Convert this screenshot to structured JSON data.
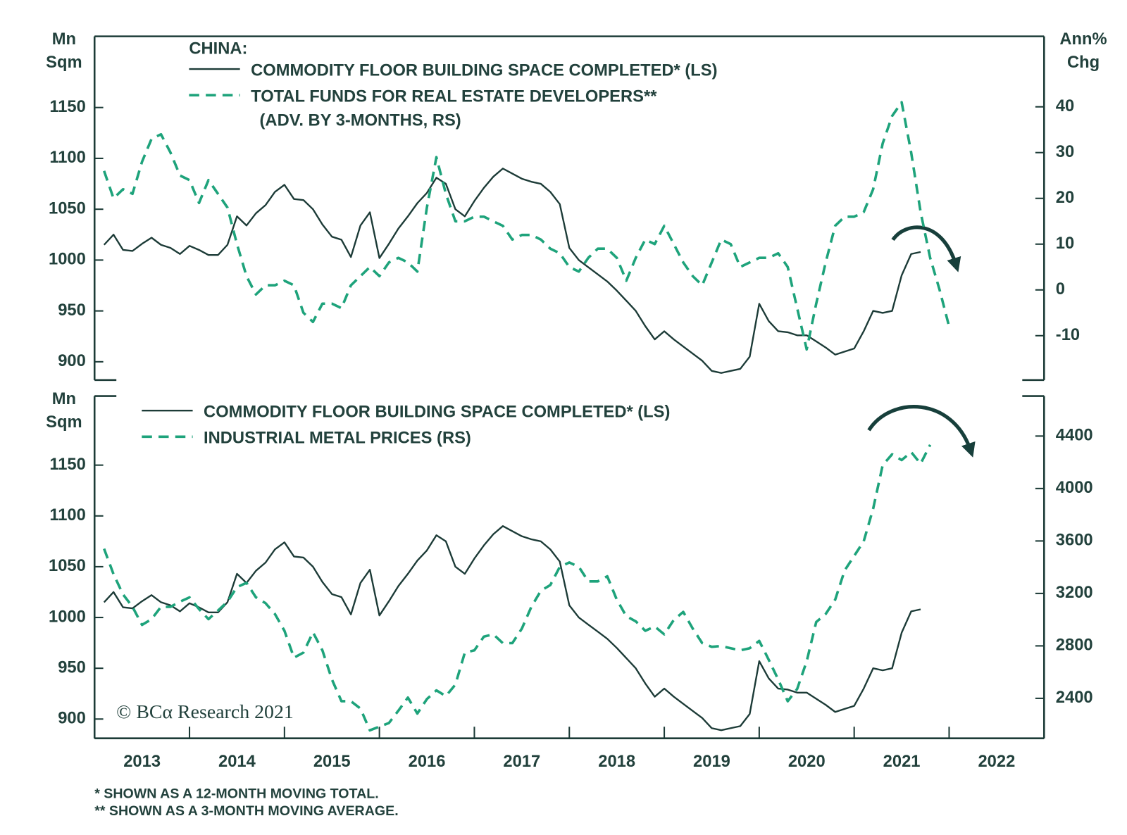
{
  "chart_data": [
    {
      "type": "line",
      "title": "CHINA:",
      "ylabel": [
        "Mn",
        "Sqm"
      ],
      "y2label": [
        "Ann%",
        "Chg"
      ],
      "x": [
        2013.1,
        2013.2,
        2013.3,
        2013.4,
        2013.5,
        2013.6,
        2013.7,
        2013.8,
        2013.9,
        2014.0,
        2014.1,
        2014.2,
        2014.3,
        2014.4,
        2014.5,
        2014.6,
        2014.7,
        2014.8,
        2014.9,
        2015.0,
        2015.1,
        2015.2,
        2015.3,
        2015.4,
        2015.5,
        2015.6,
        2015.7,
        2015.8,
        2015.9,
        2016.0,
        2016.1,
        2016.2,
        2016.3,
        2016.4,
        2016.5,
        2016.6,
        2016.7,
        2016.8,
        2016.9,
        2017.0,
        2017.1,
        2017.2,
        2017.3,
        2017.4,
        2017.5,
        2017.6,
        2017.7,
        2017.8,
        2017.9,
        2018.0,
        2018.1,
        2018.2,
        2018.3,
        2018.4,
        2018.5,
        2018.6,
        2018.7,
        2018.8,
        2018.9,
        2019.0,
        2019.1,
        2019.2,
        2019.3,
        2019.4,
        2019.5,
        2019.6,
        2019.7,
        2019.8,
        2019.9,
        2020.0,
        2020.1,
        2020.2,
        2020.3,
        2020.4,
        2020.5,
        2020.6,
        2020.7,
        2020.8,
        2020.9,
        2021.0,
        2021.1,
        2021.2,
        2021.3,
        2021.4,
        2021.5,
        2021.6,
        2021.7,
        2021.8,
        2021.9,
        2022.0
      ],
      "xlim": [
        2013,
        2023
      ],
      "ylim": [
        882,
        1220
      ],
      "yticks": [
        900,
        950,
        1000,
        1050,
        1100,
        1150
      ],
      "y2lim": [
        -19.7,
        55.4
      ],
      "y2ticks": [
        -10,
        0,
        10,
        20,
        30,
        40
      ],
      "series": [
        {
          "name": "COMMODITY FLOOR BUILDING SPACE COMPLETED* (LS)",
          "color": "#1c3b37",
          "line_style": "solid",
          "values": [
            1015,
            1025,
            1010,
            1009,
            1016,
            1022,
            1015,
            1012,
            1006,
            1014,
            1010,
            1005,
            1005,
            1015,
            1043,
            1034,
            1046,
            1054,
            1067,
            1074,
            1060,
            1059,
            1050,
            1035,
            1023,
            1020,
            1003,
            1034,
            1047,
            1002,
            1016,
            1031,
            1043,
            1056,
            1066,
            1081,
            1075,
            1050,
            1043,
            1058,
            1071,
            1082,
            1090,
            1085,
            1080,
            1077,
            1075,
            1067,
            1055,
            1012,
            1000,
            993,
            986,
            979,
            970,
            960,
            950,
            935,
            922,
            930,
            922,
            915,
            908,
            901,
            891,
            889,
            891,
            893,
            905,
            957,
            940,
            930,
            929,
            926,
            926,
            920,
            914,
            907,
            910,
            913,
            930,
            950,
            948,
            950,
            985,
            1006,
            1008,
            null,
            null,
            null
          ]
        },
        {
          "name": "TOTAL FUNDS FOR REAL ESTATE DEVELOPERS**",
          "note": "(ADV. BY 3-MONTHS, RS)",
          "color": "#1ea37b",
          "line_style": "dashed",
          "axis": "y2",
          "values": [
            26,
            20,
            22,
            21,
            28,
            33,
            34,
            30,
            25,
            24,
            19,
            24,
            21,
            18,
            10,
            3,
            -1,
            1,
            1,
            2,
            1,
            -5,
            -7,
            -3,
            -3,
            -4,
            1,
            3,
            5,
            3,
            6,
            7,
            6,
            4,
            18,
            29,
            21,
            15,
            15,
            16,
            16,
            15,
            14,
            11,
            12,
            12,
            11,
            9,
            8,
            5,
            4,
            7,
            9,
            9,
            7,
            2,
            7,
            11,
            10,
            14,
            10,
            6,
            3,
            1,
            6,
            11,
            10,
            5,
            6,
            7,
            7,
            8,
            5,
            -4,
            -13,
            -3,
            6,
            14,
            16,
            16,
            17,
            22,
            32,
            38,
            41,
            30,
            17,
            7,
            0,
            -8
          ]
        }
      ]
    },
    {
      "type": "line",
      "ylabel": [
        "Mn",
        "Sqm"
      ],
      "x": [
        2013.1,
        2013.2,
        2013.3,
        2013.4,
        2013.5,
        2013.6,
        2013.7,
        2013.8,
        2013.9,
        2014.0,
        2014.1,
        2014.2,
        2014.3,
        2014.4,
        2014.5,
        2014.6,
        2014.7,
        2014.8,
        2014.9,
        2015.0,
        2015.1,
        2015.2,
        2015.3,
        2015.4,
        2015.5,
        2015.6,
        2015.7,
        2015.8,
        2015.9,
        2016.0,
        2016.1,
        2016.2,
        2016.3,
        2016.4,
        2016.5,
        2016.6,
        2016.7,
        2016.8,
        2016.9,
        2017.0,
        2017.1,
        2017.2,
        2017.3,
        2017.4,
        2017.5,
        2017.6,
        2017.7,
        2017.8,
        2017.9,
        2018.0,
        2018.1,
        2018.2,
        2018.3,
        2018.4,
        2018.5,
        2018.6,
        2018.7,
        2018.8,
        2018.9,
        2019.0,
        2019.1,
        2019.2,
        2019.3,
        2019.4,
        2019.5,
        2019.6,
        2019.7,
        2019.8,
        2019.9,
        2020.0,
        2020.1,
        2020.2,
        2020.3,
        2020.4,
        2020.5,
        2020.6,
        2020.7,
        2020.8,
        2020.9,
        2021.0,
        2021.1,
        2021.2,
        2021.3,
        2021.4,
        2021.5,
        2021.6,
        2021.7,
        2021.8,
        2021.9,
        2022.0
      ],
      "xlim": [
        2013,
        2023
      ],
      "xticks": [
        2013,
        2014,
        2015,
        2016,
        2017,
        2018,
        2019,
        2020,
        2021,
        2022
      ],
      "ylim": [
        881,
        1218
      ],
      "yticks": [
        900,
        950,
        1000,
        1050,
        1100,
        1150
      ],
      "y2lim": [
        2095,
        4705
      ],
      "y2ticks": [
        2400,
        2800,
        3200,
        3600,
        4000,
        4400
      ],
      "series": [
        {
          "name": "COMMODITY FLOOR BUILDING SPACE COMPLETED* (LS)",
          "color": "#1c3b37",
          "line_style": "solid",
          "values": [
            1015,
            1025,
            1010,
            1009,
            1016,
            1022,
            1015,
            1012,
            1006,
            1014,
            1010,
            1005,
            1005,
            1015,
            1043,
            1034,
            1046,
            1054,
            1067,
            1074,
            1060,
            1059,
            1050,
            1035,
            1023,
            1020,
            1003,
            1034,
            1047,
            1002,
            1016,
            1031,
            1043,
            1056,
            1066,
            1081,
            1075,
            1050,
            1043,
            1058,
            1071,
            1082,
            1090,
            1085,
            1080,
            1077,
            1075,
            1067,
            1055,
            1012,
            1000,
            993,
            986,
            979,
            970,
            960,
            950,
            935,
            922,
            930,
            922,
            915,
            908,
            901,
            891,
            889,
            891,
            893,
            905,
            957,
            940,
            930,
            929,
            926,
            926,
            920,
            914,
            907,
            910,
            913,
            930,
            950,
            948,
            950,
            985,
            1006,
            1008,
            null,
            null,
            null
          ]
        },
        {
          "name": "INDUSTRIAL METAL PRICES (RS)",
          "color": "#1ea37b",
          "line_style": "dashed",
          "axis": "y2",
          "values": [
            3541,
            3347,
            3192,
            3098,
            2960,
            3004,
            3098,
            3098,
            3137,
            3170,
            3081,
            3004,
            3070,
            3137,
            3248,
            3281,
            3170,
            3126,
            3043,
            2915,
            2710,
            2749,
            2904,
            2766,
            2544,
            2378,
            2378,
            2322,
            2156,
            2184,
            2212,
            2306,
            2406,
            2284,
            2394,
            2461,
            2417,
            2505,
            2749,
            2766,
            2871,
            2888,
            2821,
            2821,
            2932,
            3098,
            3220,
            3264,
            3403,
            3436,
            3403,
            3292,
            3292,
            3331,
            3153,
            3026,
            2987,
            2915,
            2948,
            2888,
            2998,
            3059,
            2932,
            2821,
            2793,
            2799,
            2782,
            2766,
            2782,
            2838,
            2694,
            2544,
            2378,
            2472,
            2683,
            2982,
            3043,
            3153,
            3375,
            3486,
            3597,
            3846,
            4178,
            4261,
            4217,
            4278,
            4189,
            4333,
            null,
            null
          ]
        }
      ]
    }
  ],
  "credit": "© BCα Research 2021",
  "footnotes": [
    "*  SHOWN AS A 12-MONTH MOVING TOTAL.",
    "** SHOWN AS A 3-MONTH MOVING AVERAGE."
  ]
}
